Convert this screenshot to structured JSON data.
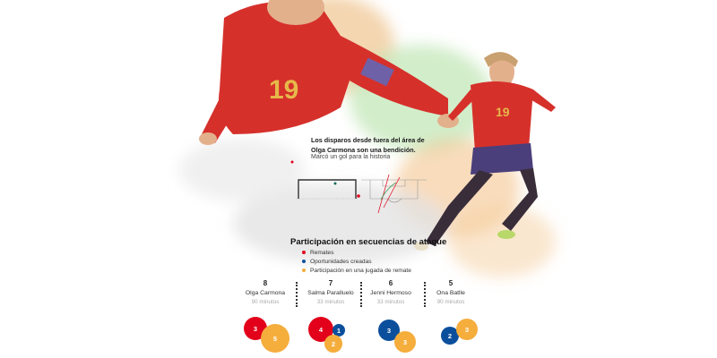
{
  "annotation": {
    "headline": "Los disparos desde fuera del área de Olga Carmona son una bendición.",
    "subline": "Marcó un gol para la historia"
  },
  "chart": {
    "title": "Participación en secuencias de ataque",
    "legend": [
      {
        "label": "Remates",
        "color": "#e2001a"
      },
      {
        "label": "Oportunidades creadas",
        "color": "#0b4f9c"
      },
      {
        "label": "Participación en una jugada de remate",
        "color": "#f5ad3c"
      }
    ],
    "players": [
      {
        "total": "8",
        "name": "Olga Carmona",
        "minutes": "90 minutos",
        "remates": "3",
        "oportunidades": null,
        "participacion": "5"
      },
      {
        "total": "7",
        "name": "Salma Paralluelo",
        "minutes": "33 minutos",
        "remates": "4",
        "oportunidades": "1",
        "participacion": "2"
      },
      {
        "total": "6",
        "name": "Jenni Hermoso",
        "minutes": "33 minutos",
        "remates": null,
        "oportunidades": "3",
        "participacion": "3"
      },
      {
        "total": "5",
        "name": "Ona Batlle",
        "minutes": "90 minutos",
        "remates": null,
        "oportunidades": "2",
        "participacion": "3"
      }
    ]
  },
  "jersey_number": "19"
}
